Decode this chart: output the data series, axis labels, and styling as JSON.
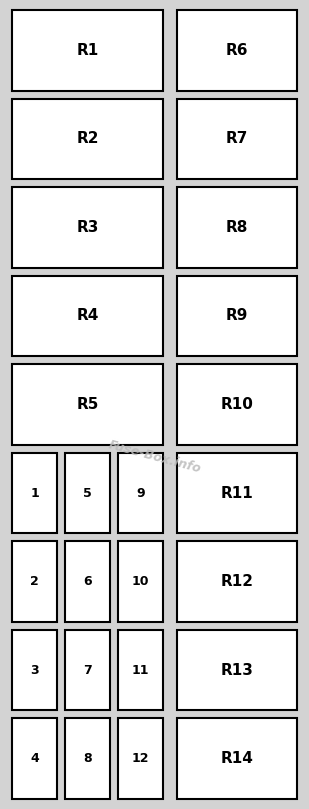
{
  "background_color": "#d3d3d3",
  "box_fill": "#ffffff",
  "box_edge": "#000000",
  "text_color": "#000000",
  "watermark_text": "Fuse-Box.info",
  "watermark_color": "#bbbbbb",
  "watermark_alpha": 0.85,
  "fig_width": 3.09,
  "fig_height": 8.09,
  "dpi": 100,
  "large_relays_top": [
    {
      "label": "R1",
      "left_col": true,
      "row": 0
    },
    {
      "label": "R2",
      "left_col": true,
      "row": 1
    },
    {
      "label": "R3",
      "left_col": true,
      "row": 2
    },
    {
      "label": "R4",
      "left_col": true,
      "row": 3
    },
    {
      "label": "R5",
      "left_col": true,
      "row": 4
    },
    {
      "label": "R6",
      "left_col": false,
      "row": 0
    },
    {
      "label": "R7",
      "left_col": false,
      "row": 1
    },
    {
      "label": "R8",
      "left_col": false,
      "row": 2
    },
    {
      "label": "R9",
      "left_col": false,
      "row": 3
    },
    {
      "label": "R10",
      "left_col": false,
      "row": 4
    }
  ],
  "large_relays_bottom": [
    {
      "label": "R11",
      "row": 5
    },
    {
      "label": "R12",
      "row": 6
    },
    {
      "label": "R13",
      "row": 7
    },
    {
      "label": "R14",
      "row": 8
    }
  ],
  "small_fuses": [
    {
      "label": "1",
      "col": 0,
      "row": 5
    },
    {
      "label": "2",
      "col": 0,
      "row": 6
    },
    {
      "label": "3",
      "col": 0,
      "row": 7
    },
    {
      "label": "4",
      "col": 0,
      "row": 8
    },
    {
      "label": "5",
      "col": 1,
      "row": 5
    },
    {
      "label": "6",
      "col": 1,
      "row": 6
    },
    {
      "label": "7",
      "col": 1,
      "row": 7
    },
    {
      "label": "8",
      "col": 1,
      "row": 8
    },
    {
      "label": "9",
      "col": 2,
      "row": 5
    },
    {
      "label": "10",
      "col": 2,
      "row": 6
    },
    {
      "label": "11",
      "col": 2,
      "row": 7
    },
    {
      "label": "12",
      "col": 2,
      "row": 8
    }
  ]
}
